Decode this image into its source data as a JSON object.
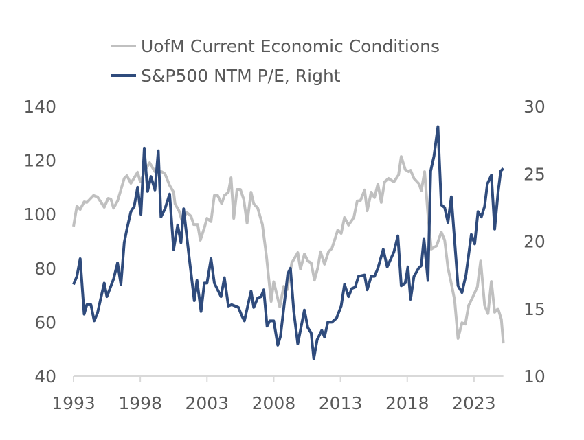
{
  "chart_data": {
    "type": "line",
    "title": "",
    "legend_position": "top-left",
    "grid": false,
    "x_ticks": [
      "1993",
      "1998",
      "2003",
      "2008",
      "2013",
      "2018",
      "2023"
    ],
    "xlim": [
      1993,
      2025.2
    ],
    "left_axis": {
      "ylim": [
        40,
        140
      ],
      "ticks": [
        "40",
        "60",
        "80",
        "100",
        "120",
        "140"
      ]
    },
    "right_axis": {
      "ylim": [
        10,
        30
      ],
      "ticks": [
        "10",
        "15",
        "20",
        "25",
        "30"
      ]
    },
    "series": [
      {
        "name": "UofM Current Economic Conditions",
        "axis": "left",
        "color": "#C0C0C0",
        "points": [
          [
            1993.0,
            95.5
          ],
          [
            1993.25,
            103
          ],
          [
            1993.5,
            101.8
          ],
          [
            1993.8,
            104.6
          ],
          [
            1994.0,
            104.4
          ],
          [
            1994.5,
            107
          ],
          [
            1994.8,
            106.4
          ],
          [
            1995.3,
            102.6
          ],
          [
            1995.6,
            105.9
          ],
          [
            1995.8,
            105.6
          ],
          [
            1996.0,
            102.3
          ],
          [
            1996.3,
            104.9
          ],
          [
            1996.8,
            113.3
          ],
          [
            1997.0,
            114.3
          ],
          [
            1997.3,
            111.5
          ],
          [
            1997.8,
            115.6
          ],
          [
            1998.0,
            112
          ],
          [
            1998.4,
            116.6
          ],
          [
            1998.7,
            119.1
          ],
          [
            1999.1,
            115.8
          ],
          [
            1999.6,
            115.8
          ],
          [
            1999.85,
            115
          ],
          [
            2000.2,
            110.7
          ],
          [
            2000.5,
            108.2
          ],
          [
            2000.6,
            103.9
          ],
          [
            2000.9,
            101.3
          ],
          [
            2001.1,
            98
          ],
          [
            2001.5,
            100.6
          ],
          [
            2001.8,
            99.3
          ],
          [
            2002.0,
            96.2
          ],
          [
            2002.3,
            96.2
          ],
          [
            2002.5,
            90.4
          ],
          [
            2002.8,
            95
          ],
          [
            2003.0,
            98.5
          ],
          [
            2003.3,
            97.3
          ],
          [
            2003.55,
            107
          ],
          [
            2003.8,
            107
          ],
          [
            2004.1,
            103.9
          ],
          [
            2004.3,
            107
          ],
          [
            2004.6,
            108.2
          ],
          [
            2004.8,
            113.5
          ],
          [
            2005.0,
            98.5
          ],
          [
            2005.25,
            109.2
          ],
          [
            2005.5,
            109.2
          ],
          [
            2005.75,
            105.6
          ],
          [
            2006.0,
            96.7
          ],
          [
            2006.3,
            108.2
          ],
          [
            2006.5,
            103.9
          ],
          [
            2006.8,
            102.3
          ],
          [
            2007.15,
            96.2
          ],
          [
            2007.45,
            84.5
          ],
          [
            2007.8,
            67.7
          ],
          [
            2008.0,
            75
          ],
          [
            2008.45,
            65.7
          ],
          [
            2008.75,
            73.3
          ],
          [
            2009.0,
            72
          ],
          [
            2009.35,
            82
          ],
          [
            2009.8,
            85.8
          ],
          [
            2010.0,
            79.7
          ],
          [
            2010.3,
            85.3
          ],
          [
            2010.55,
            82.7
          ],
          [
            2010.8,
            82
          ],
          [
            2011.05,
            75.6
          ],
          [
            2011.3,
            80.2
          ],
          [
            2011.5,
            86.1
          ],
          [
            2011.8,
            81.5
          ],
          [
            2012.1,
            86.1
          ],
          [
            2012.35,
            87.3
          ],
          [
            2012.8,
            94.2
          ],
          [
            2013.05,
            92.9
          ],
          [
            2013.3,
            98.8
          ],
          [
            2013.6,
            96
          ],
          [
            2014.0,
            98.8
          ],
          [
            2014.25,
            104.9
          ],
          [
            2014.5,
            105.1
          ],
          [
            2014.8,
            109
          ],
          [
            2015.0,
            101.3
          ],
          [
            2015.3,
            108.2
          ],
          [
            2015.55,
            106.2
          ],
          [
            2015.8,
            111.2
          ],
          [
            2016.05,
            104.4
          ],
          [
            2016.3,
            112
          ],
          [
            2016.6,
            113.3
          ],
          [
            2017.0,
            112
          ],
          [
            2017.35,
            114.6
          ],
          [
            2017.55,
            121.4
          ],
          [
            2017.85,
            116.6
          ],
          [
            2018.1,
            115.8
          ],
          [
            2018.25,
            116.3
          ],
          [
            2018.5,
            113.3
          ],
          [
            2018.9,
            111.2
          ],
          [
            2019.05,
            108.7
          ],
          [
            2019.3,
            115.8
          ],
          [
            2019.55,
            99.8
          ],
          [
            2019.8,
            87.1
          ],
          [
            2020.2,
            88.3
          ],
          [
            2020.55,
            93.4
          ],
          [
            2020.8,
            90.4
          ],
          [
            2021.05,
            80.2
          ],
          [
            2021.3,
            74.3
          ],
          [
            2021.55,
            68.2
          ],
          [
            2021.8,
            54
          ],
          [
            2022.1,
            59.8
          ],
          [
            2022.35,
            59.3
          ],
          [
            2022.6,
            66.2
          ],
          [
            2022.9,
            69.3
          ],
          [
            2023.25,
            73.1
          ],
          [
            2023.5,
            82.7
          ],
          [
            2023.8,
            66.2
          ],
          [
            2024.05,
            63.2
          ],
          [
            2024.3,
            75.1
          ],
          [
            2024.55,
            63.7
          ],
          [
            2024.8,
            65
          ],
          [
            2025.05,
            61.1
          ],
          [
            2025.2,
            52.2
          ]
        ]
      },
      {
        "name": "S&P500 NTM P/E, Right",
        "axis": "right",
        "color": "#2F4B7C",
        "points": [
          [
            1993.0,
            16.8
          ],
          [
            1993.25,
            17.4
          ],
          [
            1993.5,
            18.7
          ],
          [
            1993.8,
            14.6
          ],
          [
            1994.0,
            15.3
          ],
          [
            1994.3,
            15.3
          ],
          [
            1994.55,
            14.1
          ],
          [
            1994.8,
            14.7
          ],
          [
            1995.3,
            16.9
          ],
          [
            1995.5,
            15.9
          ],
          [
            1996.0,
            17.2
          ],
          [
            1996.3,
            18.4
          ],
          [
            1996.55,
            16.8
          ],
          [
            1996.8,
            19.9
          ],
          [
            1997.0,
            20.9
          ],
          [
            1997.3,
            22.2
          ],
          [
            1997.55,
            22.6
          ],
          [
            1997.8,
            24.0
          ],
          [
            1998.05,
            22.0
          ],
          [
            1998.3,
            26.9
          ],
          [
            1998.55,
            23.7
          ],
          [
            1998.8,
            24.8
          ],
          [
            1999.1,
            23.8
          ],
          [
            1999.35,
            26.7
          ],
          [
            1999.55,
            21.8
          ],
          [
            1999.85,
            22.4
          ],
          [
            2000.2,
            23.5
          ],
          [
            2000.5,
            19.4
          ],
          [
            2000.8,
            21.2
          ],
          [
            2001.05,
            19.9
          ],
          [
            2001.25,
            22.4
          ],
          [
            2001.65,
            18.9
          ],
          [
            2002.05,
            15.6
          ],
          [
            2002.25,
            17.1
          ],
          [
            2002.55,
            14.8
          ],
          [
            2002.8,
            16.9
          ],
          [
            2003.0,
            16.9
          ],
          [
            2003.3,
            18.7
          ],
          [
            2003.55,
            16.9
          ],
          [
            2004.05,
            15.9
          ],
          [
            2004.3,
            17.3
          ],
          [
            2004.6,
            15.2
          ],
          [
            2004.85,
            15.3
          ],
          [
            2005.35,
            15.1
          ],
          [
            2005.6,
            14.5
          ],
          [
            2005.8,
            14.1
          ],
          [
            2006.3,
            16.3
          ],
          [
            2006.5,
            15.1
          ],
          [
            2006.8,
            15.8
          ],
          [
            2007.05,
            15.9
          ],
          [
            2007.25,
            16.4
          ],
          [
            2007.5,
            13.7
          ],
          [
            2007.7,
            14.1
          ],
          [
            2008.0,
            14.1
          ],
          [
            2008.3,
            12.3
          ],
          [
            2008.5,
            12.95
          ],
          [
            2009.05,
            17.6
          ],
          [
            2009.25,
            18.0
          ],
          [
            2009.5,
            14.8
          ],
          [
            2009.8,
            12.4
          ],
          [
            2010.3,
            14.9
          ],
          [
            2010.55,
            13.6
          ],
          [
            2010.8,
            13.2
          ],
          [
            2011.0,
            11.3
          ],
          [
            2011.25,
            12.7
          ],
          [
            2011.6,
            13.4
          ],
          [
            2011.8,
            12.9
          ],
          [
            2012.05,
            14.0
          ],
          [
            2012.35,
            14.0
          ],
          [
            2012.7,
            14.3
          ],
          [
            2013.05,
            15.2
          ],
          [
            2013.3,
            16.8
          ],
          [
            2013.6,
            15.9
          ],
          [
            2013.85,
            16.5
          ],
          [
            2014.1,
            16.6
          ],
          [
            2014.35,
            17.4
          ],
          [
            2014.8,
            17.5
          ],
          [
            2015.0,
            16.4
          ],
          [
            2015.3,
            17.4
          ],
          [
            2015.55,
            17.4
          ],
          [
            2015.8,
            18.0
          ],
          [
            2016.2,
            19.4
          ],
          [
            2016.5,
            18.1
          ],
          [
            2017.0,
            19.2
          ],
          [
            2017.3,
            20.4
          ],
          [
            2017.55,
            16.7
          ],
          [
            2017.85,
            16.9
          ],
          [
            2018.05,
            18.1
          ],
          [
            2018.25,
            15.7
          ],
          [
            2018.5,
            17.4
          ],
          [
            2018.85,
            18.0
          ],
          [
            2019.05,
            18.2
          ],
          [
            2019.25,
            20.2
          ],
          [
            2019.55,
            17.1
          ],
          [
            2019.75,
            25.2
          ],
          [
            2020.0,
            26.3
          ],
          [
            2020.3,
            28.5
          ],
          [
            2020.55,
            22.7
          ],
          [
            2020.8,
            22.5
          ],
          [
            2021.05,
            21.4
          ],
          [
            2021.3,
            23.3
          ],
          [
            2021.8,
            16.7
          ],
          [
            2022.1,
            16.2
          ],
          [
            2022.4,
            17.5
          ],
          [
            2022.8,
            20.5
          ],
          [
            2023.05,
            19.8
          ],
          [
            2023.3,
            22.2
          ],
          [
            2023.55,
            21.8
          ],
          [
            2023.8,
            22.6
          ],
          [
            2024.0,
            24.25
          ],
          [
            2024.3,
            24.9
          ],
          [
            2024.55,
            20.9
          ],
          [
            2024.8,
            23.6
          ],
          [
            2025.0,
            25.2
          ],
          [
            2025.2,
            25.4
          ]
        ]
      }
    ]
  }
}
